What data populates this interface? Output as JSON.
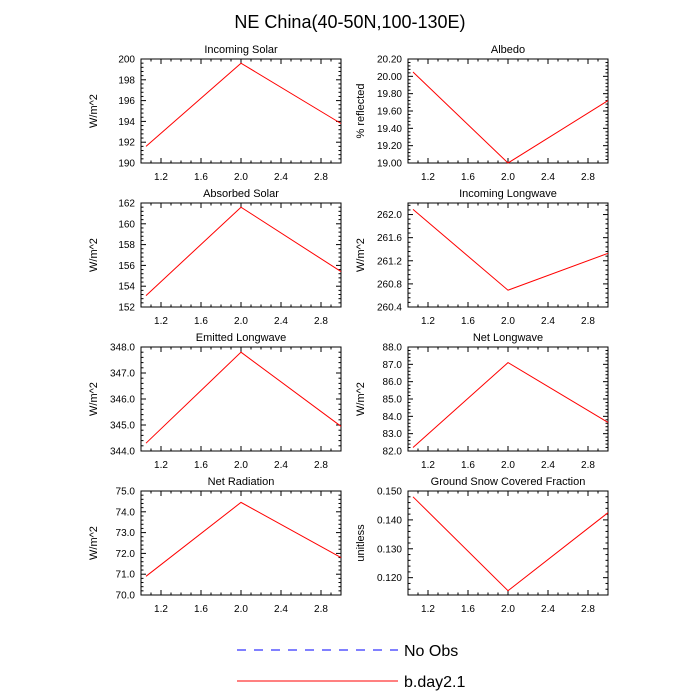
{
  "title": "NE China(40-50N,100-130E)",
  "legend": {
    "placement": "bottom-center",
    "entries": [
      {
        "label": "No Obs",
        "color": "#0000ff",
        "dash": "dashed"
      },
      {
        "label": "b.day2.1",
        "color": "#ff0000",
        "dash": "solid"
      }
    ]
  },
  "chart_data": [
    {
      "type": "line",
      "title": "Incoming Solar",
      "ylabel": "W/m^2",
      "xlim": [
        1.0,
        3.0
      ],
      "ylim": [
        190,
        200
      ],
      "xticks": [
        1.2,
        1.6,
        2.0,
        2.4,
        2.8
      ],
      "xtick_labels": [
        "1.2",
        "1.6",
        "2.0",
        "2.4",
        "2.8"
      ],
      "yticks": [
        190,
        192,
        194,
        196,
        198,
        200
      ],
      "ytick_labels": [
        "190",
        "192",
        "194",
        "196",
        "198",
        "200"
      ],
      "series": [
        {
          "name": "b.day2.1",
          "x": [
            1.05,
            2.0,
            3.0
          ],
          "y": [
            191.6,
            199.6,
            193.8
          ]
        }
      ]
    },
    {
      "type": "line",
      "title": "Albedo",
      "ylabel": "% reflected",
      "xlim": [
        1.0,
        3.0
      ],
      "ylim": [
        19.0,
        20.2
      ],
      "xticks": [
        1.2,
        1.6,
        2.0,
        2.4,
        2.8
      ],
      "xtick_labels": [
        "1.2",
        "1.6",
        "2.0",
        "2.4",
        "2.8"
      ],
      "yticks": [
        19.0,
        19.2,
        19.4,
        19.6,
        19.8,
        20.0,
        20.2
      ],
      "ytick_labels": [
        "19.00",
        "19.20",
        "19.40",
        "19.60",
        "19.80",
        "20.00",
        "20.20"
      ],
      "series": [
        {
          "name": "b.day2.1",
          "x": [
            1.05,
            2.0,
            3.0
          ],
          "y": [
            20.05,
            19.0,
            19.72
          ]
        }
      ]
    },
    {
      "type": "line",
      "title": "Absorbed Solar",
      "ylabel": "W/m^2",
      "xlim": [
        1.0,
        3.0
      ],
      "ylim": [
        152,
        162
      ],
      "xticks": [
        1.2,
        1.6,
        2.0,
        2.4,
        2.8
      ],
      "xtick_labels": [
        "1.2",
        "1.6",
        "2.0",
        "2.4",
        "2.8"
      ],
      "yticks": [
        152,
        154,
        156,
        158,
        160,
        162
      ],
      "ytick_labels": [
        "152",
        "154",
        "156",
        "158",
        "160",
        "162"
      ],
      "series": [
        {
          "name": "b.day2.1",
          "x": [
            1.05,
            2.0,
            3.0
          ],
          "y": [
            153.1,
            161.6,
            155.4
          ]
        }
      ]
    },
    {
      "type": "line",
      "title": "Incoming Longwave",
      "ylabel": "W/m^2",
      "xlim": [
        1.0,
        3.0
      ],
      "ylim": [
        260.4,
        262.2
      ],
      "xticks": [
        1.2,
        1.6,
        2.0,
        2.4,
        2.8
      ],
      "xtick_labels": [
        "1.2",
        "1.6",
        "2.0",
        "2.4",
        "2.8"
      ],
      "yticks": [
        260.4,
        260.8,
        261.2,
        261.6,
        262.0
      ],
      "ytick_labels": [
        "260.4",
        "260.8",
        "261.2",
        "261.6",
        "262.0"
      ],
      "series": [
        {
          "name": "b.day2.1",
          "x": [
            1.05,
            2.0,
            3.0
          ],
          "y": [
            262.09,
            260.69,
            261.33
          ]
        }
      ]
    },
    {
      "type": "line",
      "title": "Emitted Longwave",
      "ylabel": "W/m^2",
      "xlim": [
        1.0,
        3.0
      ],
      "ylim": [
        344.0,
        348.0
      ],
      "xticks": [
        1.2,
        1.6,
        2.0,
        2.4,
        2.8
      ],
      "xtick_labels": [
        "1.2",
        "1.6",
        "2.0",
        "2.4",
        "2.8"
      ],
      "yticks": [
        344,
        345,
        346,
        347,
        348
      ],
      "ytick_labels": [
        "344.0",
        "345.0",
        "346.0",
        "347.0",
        "348.0"
      ],
      "series": [
        {
          "name": "b.day2.1",
          "x": [
            1.05,
            2.0,
            3.0
          ],
          "y": [
            344.3,
            347.8,
            344.95
          ]
        }
      ]
    },
    {
      "type": "line",
      "title": "Net Longwave",
      "ylabel": "W/m^2",
      "xlim": [
        1.0,
        3.0
      ],
      "ylim": [
        82.0,
        88.0
      ],
      "xticks": [
        1.2,
        1.6,
        2.0,
        2.4,
        2.8
      ],
      "xtick_labels": [
        "1.2",
        "1.6",
        "2.0",
        "2.4",
        "2.8"
      ],
      "yticks": [
        82,
        83,
        84,
        85,
        86,
        87,
        88
      ],
      "ytick_labels": [
        "82.0",
        "83.0",
        "84.0",
        "85.0",
        "86.0",
        "87.0",
        "88.0"
      ],
      "series": [
        {
          "name": "b.day2.1",
          "x": [
            1.05,
            2.0,
            3.0
          ],
          "y": [
            82.2,
            87.1,
            83.65
          ]
        }
      ]
    },
    {
      "type": "line",
      "title": "Net Radiation",
      "ylabel": "W/m^2",
      "xlim": [
        1.0,
        3.0
      ],
      "ylim": [
        70.0,
        75.0
      ],
      "xticks": [
        1.2,
        1.6,
        2.0,
        2.4,
        2.8
      ],
      "xtick_labels": [
        "1.2",
        "1.6",
        "2.0",
        "2.4",
        "2.8"
      ],
      "yticks": [
        70,
        71,
        72,
        73,
        74,
        75
      ],
      "ytick_labels": [
        "70.0",
        "71.0",
        "72.0",
        "73.0",
        "74.0",
        "75.0"
      ],
      "series": [
        {
          "name": "b.day2.1",
          "x": [
            1.05,
            2.0,
            3.0
          ],
          "y": [
            70.9,
            74.45,
            71.8
          ]
        }
      ]
    },
    {
      "type": "line",
      "title": "Ground Snow Covered Fraction",
      "ylabel": "unitless",
      "xlim": [
        1.0,
        3.0
      ],
      "ylim": [
        0.114,
        0.15
      ],
      "xticks": [
        1.2,
        1.6,
        2.0,
        2.4,
        2.8
      ],
      "xtick_labels": [
        "1.2",
        "1.6",
        "2.0",
        "2.4",
        "2.8"
      ],
      "yticks": [
        0.12,
        0.13,
        0.14,
        0.15
      ],
      "ytick_labels": [
        "0.120",
        "0.130",
        "0.140",
        "0.150"
      ],
      "series": [
        {
          "name": "b.day2.1",
          "x": [
            1.05,
            2.0,
            3.0
          ],
          "y": [
            0.148,
            0.1155,
            0.1425
          ]
        }
      ]
    }
  ]
}
